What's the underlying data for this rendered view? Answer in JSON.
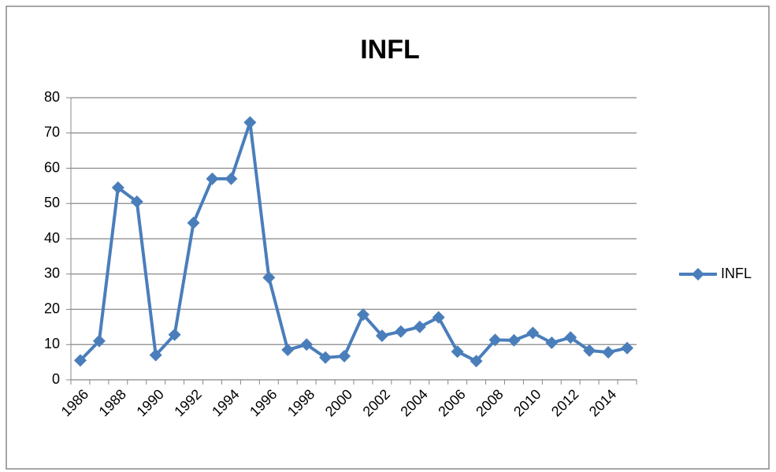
{
  "chart_data": {
    "type": "line",
    "title": "INFL",
    "categories": [
      "1986",
      null,
      "1988",
      null,
      "1990",
      null,
      "1992",
      null,
      "1994",
      null,
      "1996",
      null,
      "1998",
      null,
      "2000",
      null,
      "2002",
      null,
      "2004",
      null,
      "2006",
      null,
      "2008",
      null,
      "2010",
      null,
      "2012",
      null,
      "2014",
      null
    ],
    "series": [
      {
        "name": "INFL",
        "color": "#4a7ebb",
        "values": [
          5.5,
          11,
          54.5,
          50.5,
          7,
          12.8,
          44.5,
          57,
          57,
          73,
          29,
          8.5,
          10,
          6.3,
          6.7,
          18.5,
          12.5,
          13.7,
          15,
          17.7,
          8,
          5.3,
          11.3,
          11.2,
          13.3,
          10.5,
          12,
          8.3,
          7.8,
          9
        ]
      }
    ],
    "ylim": [
      0,
      80
    ],
    "yticks": [
      0,
      10,
      20,
      30,
      40,
      50,
      60,
      70,
      80
    ],
    "grid": true,
    "legend": "right"
  }
}
